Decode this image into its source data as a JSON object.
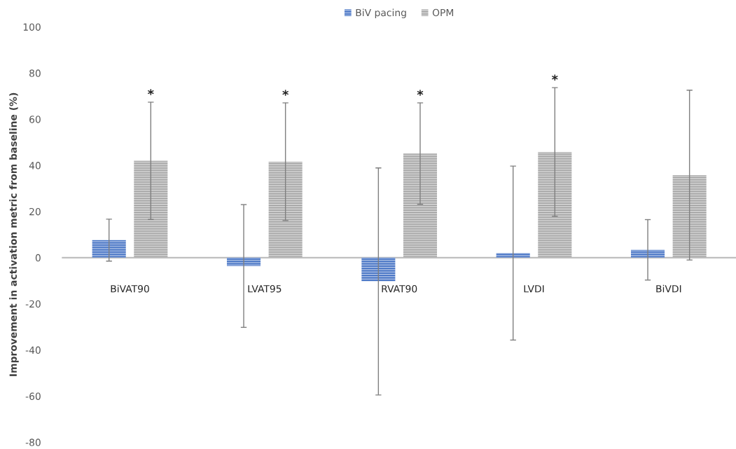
{
  "chart_data": {
    "type": "bar",
    "ylabel": "Improvement in activation metric from baseline (%)",
    "categories": [
      "BiVAT90",
      "LVAT95",
      "RVAT90",
      "LVDI",
      "BiVDI"
    ],
    "series": [
      {
        "name": "BiV pacing",
        "color": "#4472c4",
        "values": [
          7.6,
          -3.6,
          -10.3,
          2.0,
          3.4
        ],
        "errors": [
          9.1,
          26.6,
          49.2,
          37.7,
          13.1
        ]
      },
      {
        "name": "OPM",
        "color": "#a5a5a5",
        "values": [
          42.0,
          41.6,
          45.1,
          45.8,
          35.8
        ],
        "errors": [
          25.4,
          25.5,
          22.0,
          27.9,
          36.8
        ]
      }
    ],
    "ylim": [
      -80,
      100
    ],
    "yticks": [
      -80,
      -60,
      -40,
      -20,
      0,
      20,
      40,
      60,
      80,
      100
    ],
    "legend": "top",
    "annotations": [
      "*",
      "*",
      "*",
      "*"
    ]
  }
}
